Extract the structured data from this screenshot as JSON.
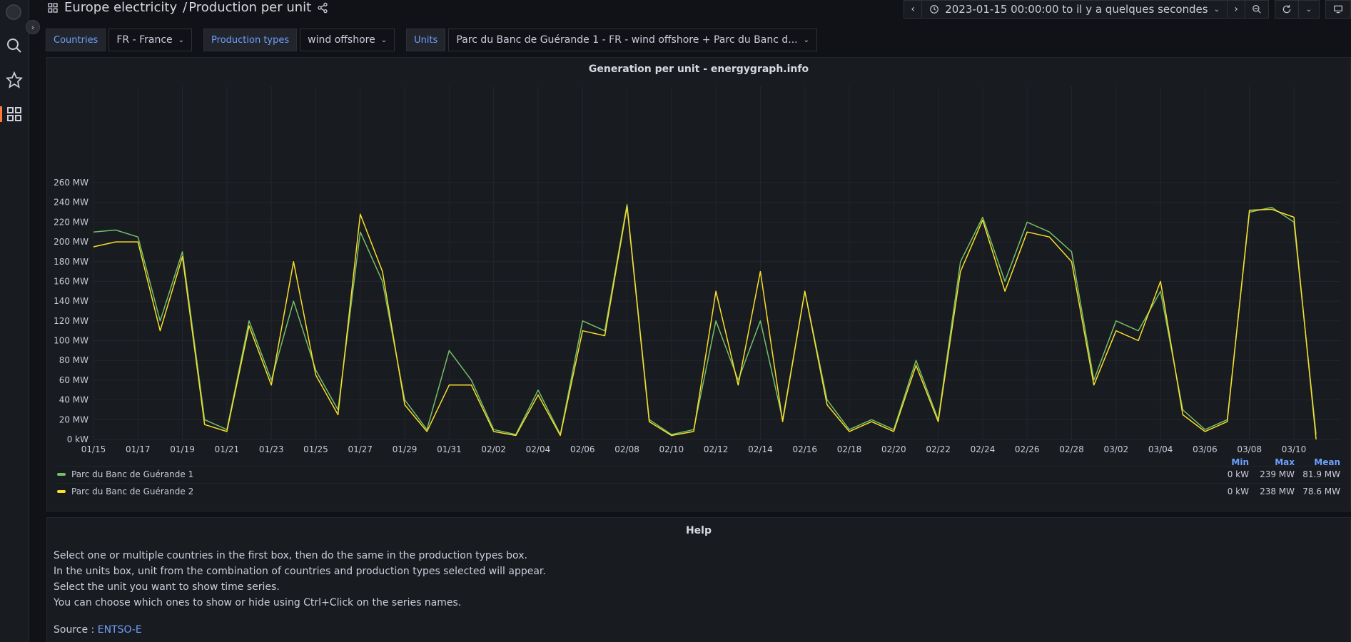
{
  "breadcrumb": {
    "folder": "Europe electricity",
    "separator": "/",
    "dashboard": "Production per unit"
  },
  "timepicker": {
    "range": "2023-01-15 00:00:00 to il y a quelques secondes"
  },
  "variables": [
    {
      "label": "Countries",
      "value": "FR - France"
    },
    {
      "label": "Production types",
      "value": "wind offshore"
    },
    {
      "label": "Units",
      "value": "Parc du Banc de Guérande 1 - FR - wind offshore + Parc du Banc d..."
    }
  ],
  "colors": {
    "series1": "#73bf69",
    "series2": "#fade2a",
    "accent": "#6e9fff",
    "active": "#ff7a3d"
  },
  "panel": {
    "title": "Generation per unit - energygraph.info",
    "legend": {
      "headers": [
        "Min",
        "Max",
        "Mean"
      ],
      "rows": [
        {
          "name": "Parc du Banc de Guérande 1",
          "min": "0 kW",
          "max": "239 MW",
          "mean": "81.9 MW"
        },
        {
          "name": "Parc du Banc de Guérande 2",
          "min": "0 kW",
          "max": "238 MW",
          "mean": "78.6 MW"
        }
      ]
    }
  },
  "chart_data": {
    "type": "line",
    "title": "Generation per unit - energygraph.info",
    "y_ticks": [
      "0 kW",
      "20 MW",
      "40 MW",
      "60 MW",
      "80 MW",
      "100 MW",
      "120 MW",
      "140 MW",
      "160 MW",
      "180 MW",
      "200 MW",
      "220 MW",
      "240 MW",
      "260 MW"
    ],
    "x_ticks": [
      "01/15",
      "01/17",
      "01/19",
      "01/21",
      "01/23",
      "01/25",
      "01/27",
      "01/29",
      "01/31",
      "02/02",
      "02/04",
      "02/06",
      "02/08",
      "02/10",
      "02/12",
      "02/14",
      "02/16",
      "02/18",
      "02/20",
      "02/22",
      "02/24",
      "02/26",
      "02/28",
      "03/02",
      "03/04",
      "03/06",
      "03/08",
      "03/10"
    ],
    "ylim": [
      0,
      260
    ],
    "xlim": [
      "01/15",
      "03/10"
    ],
    "grid": true,
    "legend_placement": "bottom",
    "series": [
      {
        "name": "Parc du Banc de Guérande 1",
        "x": [
          "01/15",
          "01/16",
          "01/17",
          "01/18",
          "01/19",
          "01/20",
          "01/21",
          "01/22",
          "01/23",
          "01/24",
          "01/25",
          "01/26",
          "01/27",
          "01/28",
          "01/29",
          "01/30",
          "01/31",
          "02/01",
          "02/02",
          "02/03",
          "02/04",
          "02/05",
          "02/06",
          "02/07",
          "02/08",
          "02/09",
          "02/10",
          "02/11",
          "02/12",
          "02/13",
          "02/14",
          "02/15",
          "02/16",
          "02/17",
          "02/18",
          "02/19",
          "02/20",
          "02/21",
          "02/22",
          "02/23",
          "02/24",
          "02/25",
          "02/26",
          "02/27",
          "02/28",
          "03/01",
          "03/02",
          "03/03",
          "03/04",
          "03/05",
          "03/06",
          "03/07",
          "03/08",
          "03/09",
          "03/10",
          "03/11"
        ],
        "values": [
          210,
          212,
          205,
          120,
          190,
          20,
          10,
          120,
          60,
          140,
          70,
          30,
          210,
          160,
          40,
          10,
          90,
          60,
          10,
          5,
          50,
          5,
          120,
          110,
          238,
          20,
          5,
          10,
          120,
          60,
          120,
          20,
          150,
          40,
          10,
          20,
          10,
          80,
          20,
          180,
          225,
          160,
          220,
          210,
          190,
          60,
          120,
          110,
          150,
          30,
          10,
          20,
          230,
          235,
          220,
          5
        ]
      },
      {
        "name": "Parc du Banc de Guérande 2",
        "x": [
          "01/15",
          "01/16",
          "01/17",
          "01/18",
          "01/19",
          "01/20",
          "01/21",
          "01/22",
          "01/23",
          "01/24",
          "01/25",
          "01/26",
          "01/27",
          "01/28",
          "01/29",
          "01/30",
          "01/31",
          "02/01",
          "02/02",
          "02/03",
          "02/04",
          "02/05",
          "02/06",
          "02/07",
          "02/08",
          "02/09",
          "02/10",
          "02/11",
          "02/12",
          "02/13",
          "02/14",
          "02/15",
          "02/16",
          "02/17",
          "02/18",
          "02/19",
          "02/20",
          "02/21",
          "02/22",
          "02/23",
          "02/24",
          "02/25",
          "02/26",
          "02/27",
          "02/28",
          "03/01",
          "03/02",
          "03/03",
          "03/04",
          "03/05",
          "03/06",
          "03/07",
          "03/08",
          "03/09",
          "03/10",
          "03/11"
        ],
        "values": [
          195,
          200,
          200,
          110,
          185,
          15,
          8,
          115,
          55,
          180,
          65,
          25,
          228,
          170,
          35,
          8,
          55,
          55,
          8,
          4,
          45,
          4,
          110,
          105,
          236,
          18,
          4,
          8,
          150,
          55,
          170,
          18,
          150,
          35,
          8,
          18,
          8,
          75,
          18,
          170,
          222,
          150,
          210,
          205,
          180,
          55,
          110,
          100,
          160,
          25,
          8,
          18,
          232,
          233,
          225,
          0
        ]
      }
    ]
  },
  "help": {
    "title": "Help",
    "lines": [
      "Select one or multiple countries in the first box, then do the same in the production types box.",
      "In the units box, unit from the combination of countries and production types selected will appear.",
      "Select the unit you want to show time series.",
      "You can choose which ones to show or hide using Ctrl+Click on the series names."
    ],
    "source_label": "Source :",
    "source_link": "ENTSO-E"
  }
}
